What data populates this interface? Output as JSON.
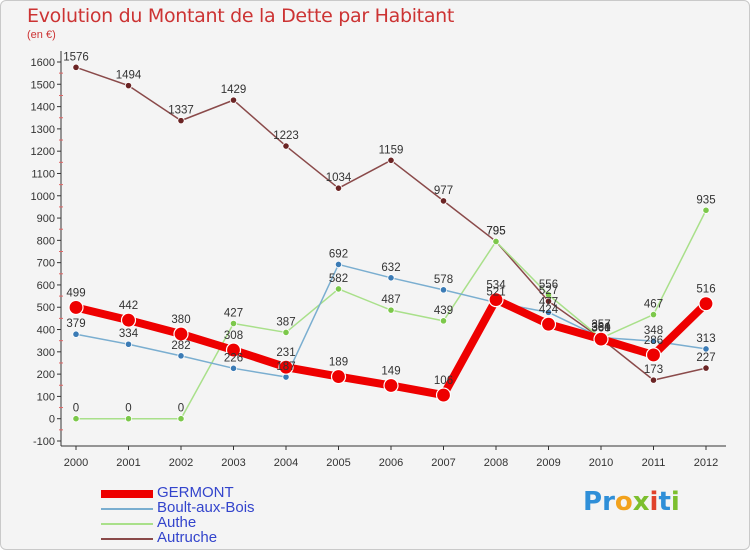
{
  "title": "Evolution du Montant de la Dette par Habitant",
  "subtitle": "(en €)",
  "logo": {
    "text": "Proxiti",
    "letters": [
      {
        "ch": "P",
        "color": "#2f8fd8"
      },
      {
        "ch": "r",
        "color": "#2f8fd8"
      },
      {
        "ch": "o",
        "color": "#f2a21d"
      },
      {
        "ch": "x",
        "color": "#7cbf2e"
      },
      {
        "ch": "i",
        "color": "#e0412b"
      },
      {
        "ch": "t",
        "color": "#2f8fd8"
      },
      {
        "ch": "i",
        "color": "#7cbf2e"
      }
    ]
  },
  "chart_data": {
    "type": "line",
    "title": "Evolution du Montant de la Dette par Habitant",
    "ylabel": "(en €)",
    "xlabel": "",
    "x": [
      "2000",
      "2001",
      "2002",
      "2003",
      "2004",
      "2005",
      "2006",
      "2007",
      "2008",
      "2009",
      "2010",
      "2011",
      "2012"
    ],
    "ylim": [
      -100,
      1600
    ],
    "yticks": [
      -100,
      0,
      100,
      200,
      300,
      400,
      500,
      600,
      700,
      800,
      900,
      1000,
      1100,
      1200,
      1300,
      1400,
      1500,
      1600
    ],
    "grid": false,
    "legend_position": "bottom-left",
    "series": [
      {
        "name": "GERMONT",
        "color": "#ee0000",
        "marker": "#ee0000",
        "width": 8,
        "radius": 7,
        "values": [
          499,
          442,
          380,
          308,
          231,
          189,
          149,
          106,
          534,
          424,
          357,
          286,
          516
        ]
      },
      {
        "name": "Boult-aux-Bois",
        "color": "#7aaed0",
        "marker": "#3b7bb5",
        "width": 1.5,
        "radius": 3.2,
        "values": [
          379,
          334,
          282,
          226,
          187,
          692,
          632,
          578,
          521,
          477,
          364,
          348,
          313
        ]
      },
      {
        "name": "Authe",
        "color": "#a9e08a",
        "marker": "#7cc84a",
        "width": 1.5,
        "radius": 3.2,
        "values": [
          0,
          0,
          0,
          427,
          387,
          582,
          487,
          439,
          795,
          556,
          361,
          467,
          935
        ]
      },
      {
        "name": "Autruche",
        "color": "#8a4a4a",
        "marker": "#6b2424",
        "width": 1.5,
        "radius": 3.2,
        "values": [
          1576,
          1494,
          1337,
          1429,
          1223,
          1034,
          1159,
          977,
          795,
          527,
          360,
          173,
          227
        ]
      }
    ]
  }
}
